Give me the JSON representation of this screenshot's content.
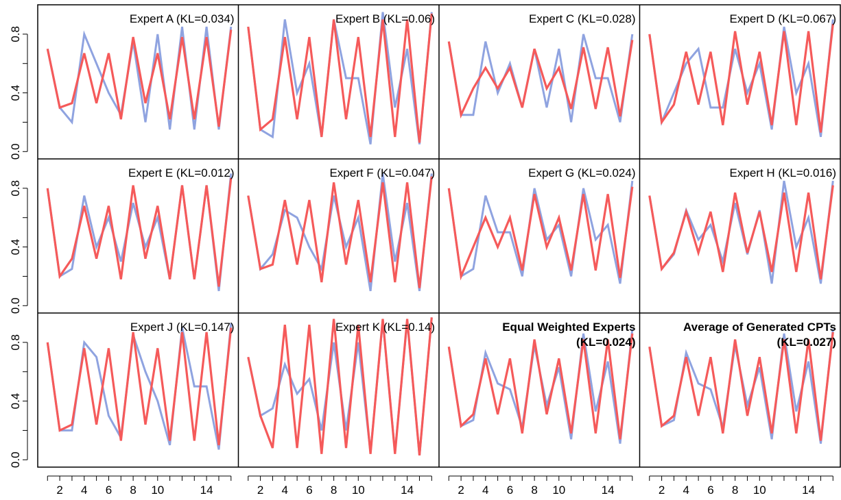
{
  "colors": {
    "series_a": "#8fa3e0",
    "series_b": "#f55a5a",
    "frame": "#000000"
  },
  "chart_data": [
    {
      "type": "line",
      "title": "Expert A (KL=0.034)",
      "x": [
        1,
        2,
        3,
        4,
        5,
        6,
        7,
        8,
        9,
        10,
        11,
        12,
        13,
        14,
        15,
        16
      ],
      "ylim": [
        -0.05,
        1.0
      ],
      "xlim": [
        0.2,
        16.6
      ],
      "series": [
        {
          "values": [
            0.7,
            0.3,
            0.2,
            0.8,
            0.6,
            0.4,
            0.25,
            0.75,
            0.2,
            0.8,
            0.15,
            0.85,
            0.15,
            0.85,
            0.15,
            0.85
          ]
        },
        {
          "values": [
            0.7,
            0.3,
            0.33,
            0.67,
            0.33,
            0.67,
            0.22,
            0.78,
            0.33,
            0.67,
            0.22,
            0.78,
            0.22,
            0.78,
            0.17,
            0.83
          ]
        }
      ]
    },
    {
      "type": "line",
      "title": "Expert B (KL=0.06)",
      "x": [
        1,
        2,
        3,
        4,
        5,
        6,
        7,
        8,
        9,
        10,
        11,
        12,
        13,
        14,
        15,
        16
      ],
      "ylim": [
        -0.05,
        1.0
      ],
      "xlim": [
        0.2,
        16.6
      ],
      "series": [
        {
          "values": [
            0.85,
            0.15,
            0.1,
            0.9,
            0.4,
            0.6,
            0.1,
            0.9,
            0.5,
            0.5,
            0.05,
            0.95,
            0.3,
            0.7,
            0.05,
            0.95
          ]
        },
        {
          "values": [
            0.85,
            0.15,
            0.22,
            0.78,
            0.22,
            0.78,
            0.1,
            0.9,
            0.22,
            0.78,
            0.1,
            0.9,
            0.1,
            0.9,
            0.06,
            0.94
          ]
        }
      ]
    },
    {
      "type": "line",
      "title": "Expert C (KL=0.028)",
      "x": [
        1,
        2,
        3,
        4,
        5,
        6,
        7,
        8,
        9,
        10,
        11,
        12,
        13,
        14,
        15,
        16
      ],
      "ylim": [
        -0.05,
        1.0
      ],
      "xlim": [
        0.2,
        16.6
      ],
      "series": [
        {
          "values": [
            0.75,
            0.25,
            0.25,
            0.75,
            0.4,
            0.6,
            0.3,
            0.7,
            0.3,
            0.7,
            0.2,
            0.8,
            0.5,
            0.5,
            0.2,
            0.8
          ]
        },
        {
          "values": [
            0.75,
            0.25,
            0.43,
            0.57,
            0.43,
            0.57,
            0.3,
            0.7,
            0.43,
            0.57,
            0.29,
            0.71,
            0.29,
            0.71,
            0.24,
            0.76
          ]
        }
      ]
    },
    {
      "type": "line",
      "title": "Expert D (KL=0.067)",
      "x": [
        1,
        2,
        3,
        4,
        5,
        6,
        7,
        8,
        9,
        10,
        11,
        12,
        13,
        14,
        15,
        16
      ],
      "ylim": [
        -0.05,
        1.0
      ],
      "xlim": [
        0.2,
        16.6
      ],
      "series": [
        {
          "values": [
            0.8,
            0.2,
            0.4,
            0.6,
            0.7,
            0.3,
            0.3,
            0.7,
            0.4,
            0.6,
            0.15,
            0.85,
            0.4,
            0.6,
            0.1,
            0.9
          ]
        },
        {
          "values": [
            0.8,
            0.2,
            0.32,
            0.68,
            0.32,
            0.68,
            0.18,
            0.82,
            0.32,
            0.68,
            0.18,
            0.82,
            0.18,
            0.82,
            0.13,
            0.87
          ]
        }
      ]
    },
    {
      "type": "line",
      "title": "Expert E (KL=0.012)",
      "x": [
        1,
        2,
        3,
        4,
        5,
        6,
        7,
        8,
        9,
        10,
        11,
        12,
        13,
        14,
        15,
        16
      ],
      "ylim": [
        -0.05,
        1.0
      ],
      "xlim": [
        0.2,
        16.6
      ],
      "series": [
        {
          "values": [
            0.8,
            0.2,
            0.25,
            0.75,
            0.4,
            0.6,
            0.3,
            0.7,
            0.4,
            0.6,
            0.18,
            0.82,
            0.18,
            0.82,
            0.1,
            0.9
          ]
        },
        {
          "values": [
            0.8,
            0.2,
            0.32,
            0.68,
            0.32,
            0.68,
            0.18,
            0.82,
            0.32,
            0.68,
            0.18,
            0.82,
            0.18,
            0.82,
            0.13,
            0.87
          ]
        }
      ]
    },
    {
      "type": "line",
      "title": "Expert F (KL=0.047)",
      "x": [
        1,
        2,
        3,
        4,
        5,
        6,
        7,
        8,
        9,
        10,
        11,
        12,
        13,
        14,
        15,
        16
      ],
      "ylim": [
        -0.05,
        1.0
      ],
      "xlim": [
        0.2,
        16.6
      ],
      "series": [
        {
          "values": [
            0.75,
            0.25,
            0.35,
            0.65,
            0.6,
            0.4,
            0.25,
            0.75,
            0.4,
            0.6,
            0.1,
            0.9,
            0.3,
            0.7,
            0.1,
            0.9
          ]
        },
        {
          "values": [
            0.75,
            0.25,
            0.28,
            0.72,
            0.28,
            0.72,
            0.16,
            0.84,
            0.28,
            0.72,
            0.16,
            0.84,
            0.16,
            0.84,
            0.12,
            0.88
          ]
        }
      ]
    },
    {
      "type": "line",
      "title": "Expert G (KL=0.024)",
      "x": [
        1,
        2,
        3,
        4,
        5,
        6,
        7,
        8,
        9,
        10,
        11,
        12,
        13,
        14,
        15,
        16
      ],
      "ylim": [
        -0.05,
        1.0
      ],
      "xlim": [
        0.2,
        16.6
      ],
      "series": [
        {
          "values": [
            0.8,
            0.2,
            0.25,
            0.75,
            0.5,
            0.5,
            0.2,
            0.8,
            0.45,
            0.55,
            0.2,
            0.8,
            0.45,
            0.55,
            0.15,
            0.85
          ]
        },
        {
          "values": [
            0.8,
            0.2,
            0.4,
            0.6,
            0.4,
            0.6,
            0.24,
            0.76,
            0.4,
            0.6,
            0.24,
            0.76,
            0.24,
            0.76,
            0.19,
            0.81
          ]
        }
      ]
    },
    {
      "type": "line",
      "title": "Expert H (KL=0.016)",
      "x": [
        1,
        2,
        3,
        4,
        5,
        6,
        7,
        8,
        9,
        10,
        11,
        12,
        13,
        14,
        15,
        16
      ],
      "ylim": [
        -0.05,
        1.0
      ],
      "xlim": [
        0.2,
        16.6
      ],
      "series": [
        {
          "values": [
            0.75,
            0.25,
            0.35,
            0.65,
            0.45,
            0.55,
            0.3,
            0.7,
            0.35,
            0.65,
            0.15,
            0.85,
            0.4,
            0.6,
            0.15,
            0.85
          ]
        },
        {
          "values": [
            0.75,
            0.25,
            0.36,
            0.64,
            0.36,
            0.64,
            0.23,
            0.77,
            0.36,
            0.64,
            0.23,
            0.77,
            0.23,
            0.77,
            0.18,
            0.82
          ]
        }
      ]
    },
    {
      "type": "line",
      "title": "Expert J (KL=0.147)",
      "x": [
        1,
        2,
        3,
        4,
        5,
        6,
        7,
        8,
        9,
        10,
        11,
        12,
        13,
        14,
        15,
        16
      ],
      "ylim": [
        -0.05,
        1.0
      ],
      "xlim": [
        0.2,
        16.6
      ],
      "series": [
        {
          "values": [
            0.8,
            0.2,
            0.2,
            0.8,
            0.7,
            0.3,
            0.15,
            0.85,
            0.6,
            0.4,
            0.1,
            0.9,
            0.5,
            0.5,
            0.07,
            0.93
          ]
        },
        {
          "values": [
            0.8,
            0.2,
            0.24,
            0.76,
            0.24,
            0.76,
            0.13,
            0.87,
            0.24,
            0.76,
            0.13,
            0.87,
            0.13,
            0.87,
            0.1,
            0.9
          ]
        }
      ]
    },
    {
      "type": "line",
      "title": "Expert K (KL=0.14)",
      "x": [
        1,
        2,
        3,
        4,
        5,
        6,
        7,
        8,
        9,
        10,
        11,
        12,
        13,
        14,
        15,
        16
      ],
      "ylim": [
        -0.05,
        1.0
      ],
      "xlim": [
        0.2,
        16.6
      ],
      "series": [
        {
          "values": [
            0.7,
            0.3,
            0.35,
            0.65,
            0.45,
            0.55,
            0.2,
            0.8,
            0.2,
            0.8,
            0.05,
            0.95,
            0.05,
            0.95,
            0.03,
            0.97
          ]
        },
        {
          "values": [
            0.7,
            0.3,
            0.08,
            0.92,
            0.08,
            0.92,
            0.04,
            0.96,
            0.08,
            0.92,
            0.04,
            0.96,
            0.04,
            0.96,
            0.03,
            0.97
          ]
        }
      ]
    },
    {
      "type": "line",
      "title": "Equal Weighted Experts",
      "title_line2": "(KL=0.024)",
      "title_bold": true,
      "x": [
        1,
        2,
        3,
        4,
        5,
        6,
        7,
        8,
        9,
        10,
        11,
        12,
        13,
        14,
        15,
        16
      ],
      "ylim": [
        -0.05,
        1.0
      ],
      "xlim": [
        0.2,
        16.6
      ],
      "series": [
        {
          "values": [
            0.77,
            0.23,
            0.27,
            0.73,
            0.52,
            0.48,
            0.22,
            0.78,
            0.37,
            0.63,
            0.14,
            0.86,
            0.33,
            0.67,
            0.11,
            0.89
          ]
        },
        {
          "values": [
            0.77,
            0.23,
            0.31,
            0.69,
            0.31,
            0.69,
            0.18,
            0.82,
            0.31,
            0.69,
            0.18,
            0.82,
            0.18,
            0.82,
            0.14,
            0.86
          ]
        }
      ]
    },
    {
      "type": "line",
      "title": "Average of Generated CPTs",
      "title_line2": "(KL=0.027)",
      "title_bold": true,
      "x": [
        1,
        2,
        3,
        4,
        5,
        6,
        7,
        8,
        9,
        10,
        11,
        12,
        13,
        14,
        15,
        16
      ],
      "ylim": [
        -0.05,
        1.0
      ],
      "xlim": [
        0.2,
        16.6
      ],
      "series": [
        {
          "values": [
            0.77,
            0.23,
            0.27,
            0.73,
            0.52,
            0.48,
            0.22,
            0.78,
            0.37,
            0.63,
            0.14,
            0.86,
            0.33,
            0.67,
            0.11,
            0.89
          ]
        },
        {
          "values": [
            0.77,
            0.23,
            0.3,
            0.7,
            0.3,
            0.7,
            0.18,
            0.82,
            0.3,
            0.7,
            0.18,
            0.82,
            0.18,
            0.82,
            0.13,
            0.87
          ]
        }
      ]
    }
  ],
  "y_ticks": [
    {
      "value": 0.0,
      "label": "0.0"
    },
    {
      "value": 0.2,
      "label": ""
    },
    {
      "value": 0.4,
      "label": "0.4"
    },
    {
      "value": 0.6,
      "label": ""
    },
    {
      "value": 0.8,
      "label": "0.8"
    }
  ],
  "x_ticks": [
    {
      "value": 1,
      "label": ""
    },
    {
      "value": 2,
      "label": "2"
    },
    {
      "value": 3,
      "label": ""
    },
    {
      "value": 4,
      "label": "4"
    },
    {
      "value": 5,
      "label": ""
    },
    {
      "value": 6,
      "label": "6"
    },
    {
      "value": 7,
      "label": ""
    },
    {
      "value": 8,
      "label": "8"
    },
    {
      "value": 9,
      "label": ""
    },
    {
      "value": 10,
      "label": "10"
    },
    {
      "value": 11,
      "label": ""
    },
    {
      "value": 12,
      "label": ""
    },
    {
      "value": 13,
      "label": ""
    },
    {
      "value": 14,
      "label": "14"
    },
    {
      "value": 15,
      "label": ""
    },
    {
      "value": 16,
      "label": ""
    }
  ]
}
